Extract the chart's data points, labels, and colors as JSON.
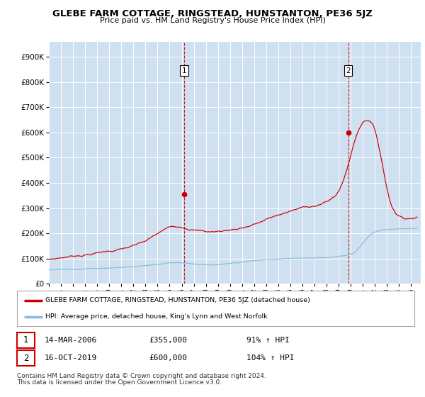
{
  "title": "GLEBE FARM COTTAGE, RINGSTEAD, HUNSTANTON, PE36 5JZ",
  "subtitle": "Price paid vs. HM Land Registry's House Price Index (HPI)",
  "title_fontsize": 9.5,
  "subtitle_fontsize": 8,
  "ytick_values": [
    0,
    100000,
    200000,
    300000,
    400000,
    500000,
    600000,
    700000,
    800000,
    900000
  ],
  "ylim": [
    0,
    960000
  ],
  "xlim_start": 1995.0,
  "xlim_end": 2025.8,
  "fig_bg_color": "#ffffff",
  "plot_bg_color": "#cfe0f0",
  "grid_color": "#ffffff",
  "red_line_color": "#cc0000",
  "blue_line_color": "#88bbdd",
  "sale1_x": 2006.19,
  "sale1_y": 355000,
  "sale2_x": 2019.79,
  "sale2_y": 600000,
  "legend_line1": "GLEBE FARM COTTAGE, RINGSTEAD, HUNSTANTON, PE36 5JZ (detached house)",
  "legend_line2": "HPI: Average price, detached house, King's Lynn and West Norfolk",
  "table_row1": [
    "1",
    "14-MAR-2006",
    "£355,000",
    "91% ↑ HPI"
  ],
  "table_row2": [
    "2",
    "16-OCT-2019",
    "£600,000",
    "104% ↑ HPI"
  ],
  "footnote1": "Contains HM Land Registry data © Crown copyright and database right 2024.",
  "footnote2": "This data is licensed under the Open Government Licence v3.0.",
  "footnote_fontsize": 6.5
}
